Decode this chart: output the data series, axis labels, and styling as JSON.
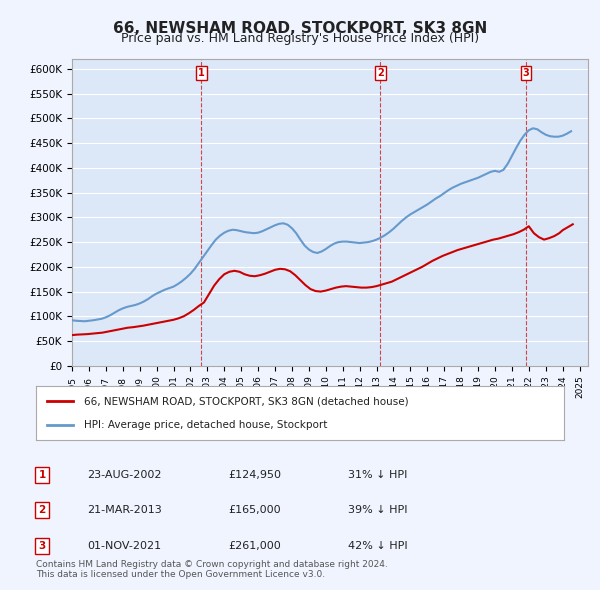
{
  "title": "66, NEWSHAM ROAD, STOCKPORT, SK3 8GN",
  "subtitle": "Price paid vs. HM Land Registry's House Price Index (HPI)",
  "title_fontsize": 11,
  "subtitle_fontsize": 9,
  "ylim": [
    0,
    620000
  ],
  "yticks": [
    0,
    50000,
    100000,
    150000,
    200000,
    250000,
    300000,
    350000,
    400000,
    450000,
    500000,
    550000,
    600000
  ],
  "ytick_labels": [
    "£0",
    "£50K",
    "£100K",
    "£150K",
    "£200K",
    "£250K",
    "£300K",
    "£350K",
    "£400K",
    "£450K",
    "£500K",
    "£550K",
    "£600K"
  ],
  "xlim_start": 1995.0,
  "xlim_end": 2025.5,
  "background_color": "#f0f4ff",
  "plot_bg_color": "#dce8f8",
  "grid_color": "#ffffff",
  "red_line_color": "#cc0000",
  "blue_line_color": "#6699cc",
  "sale_marker_color": "#cc0000",
  "sale_vline_color": "#cc0000",
  "sales": [
    {
      "date_num": 2002.64,
      "price": 124950,
      "label": "1"
    },
    {
      "date_num": 2013.22,
      "price": 165000,
      "label": "2"
    },
    {
      "date_num": 2021.83,
      "price": 261000,
      "label": "3"
    }
  ],
  "legend_line1": "66, NEWSHAM ROAD, STOCKPORT, SK3 8GN (detached house)",
  "legend_line2": "HPI: Average price, detached house, Stockport",
  "table_rows": [
    {
      "num": "1",
      "date": "23-AUG-2002",
      "price": "£124,950",
      "hpi": "31% ↓ HPI"
    },
    {
      "num": "2",
      "date": "21-MAR-2013",
      "price": "£165,000",
      "hpi": "39% ↓ HPI"
    },
    {
      "num": "3",
      "date": "01-NOV-2021",
      "price": "£261,000",
      "hpi": "42% ↓ HPI"
    }
  ],
  "footnote": "Contains HM Land Registry data © Crown copyright and database right 2024.\nThis data is licensed under the Open Government Licence v3.0.",
  "hpi_data": {
    "years": [
      1995.0,
      1995.25,
      1995.5,
      1995.75,
      1996.0,
      1996.25,
      1996.5,
      1996.75,
      1997.0,
      1997.25,
      1997.5,
      1997.75,
      1998.0,
      1998.25,
      1998.5,
      1998.75,
      1999.0,
      1999.25,
      1999.5,
      1999.75,
      2000.0,
      2000.25,
      2000.5,
      2000.75,
      2001.0,
      2001.25,
      2001.5,
      2001.75,
      2002.0,
      2002.25,
      2002.5,
      2002.75,
      2003.0,
      2003.25,
      2003.5,
      2003.75,
      2004.0,
      2004.25,
      2004.5,
      2004.75,
      2005.0,
      2005.25,
      2005.5,
      2005.75,
      2006.0,
      2006.25,
      2006.5,
      2006.75,
      2007.0,
      2007.25,
      2007.5,
      2007.75,
      2008.0,
      2008.25,
      2008.5,
      2008.75,
      2009.0,
      2009.25,
      2009.5,
      2009.75,
      2010.0,
      2010.25,
      2010.5,
      2010.75,
      2011.0,
      2011.25,
      2011.5,
      2011.75,
      2012.0,
      2012.25,
      2012.5,
      2012.75,
      2013.0,
      2013.25,
      2013.5,
      2013.75,
      2014.0,
      2014.25,
      2014.5,
      2014.75,
      2015.0,
      2015.25,
      2015.5,
      2015.75,
      2016.0,
      2016.25,
      2016.5,
      2016.75,
      2017.0,
      2017.25,
      2017.5,
      2017.75,
      2018.0,
      2018.25,
      2018.5,
      2018.75,
      2019.0,
      2019.25,
      2019.5,
      2019.75,
      2020.0,
      2020.25,
      2020.5,
      2020.75,
      2021.0,
      2021.25,
      2021.5,
      2021.75,
      2022.0,
      2022.25,
      2022.5,
      2022.75,
      2023.0,
      2023.25,
      2023.5,
      2023.75,
      2024.0,
      2024.25,
      2024.5
    ],
    "values": [
      92000,
      91000,
      90500,
      90000,
      91000,
      92000,
      93500,
      95000,
      98000,
      102000,
      107000,
      112000,
      116000,
      119000,
      121000,
      123000,
      126000,
      130000,
      135000,
      141000,
      146000,
      150000,
      154000,
      157000,
      160000,
      165000,
      171000,
      178000,
      186000,
      196000,
      208000,
      220000,
      232000,
      244000,
      255000,
      263000,
      269000,
      273000,
      275000,
      274000,
      272000,
      270000,
      269000,
      268000,
      269000,
      272000,
      276000,
      280000,
      284000,
      287000,
      288000,
      285000,
      278000,
      268000,
      255000,
      243000,
      235000,
      230000,
      228000,
      231000,
      236000,
      242000,
      247000,
      250000,
      251000,
      251000,
      250000,
      249000,
      248000,
      249000,
      250000,
      252000,
      255000,
      259000,
      264000,
      270000,
      277000,
      285000,
      293000,
      300000,
      306000,
      311000,
      316000,
      321000,
      326000,
      332000,
      338000,
      343000,
      349000,
      355000,
      360000,
      364000,
      368000,
      371000,
      374000,
      377000,
      380000,
      384000,
      388000,
      392000,
      394000,
      392000,
      396000,
      408000,
      424000,
      440000,
      455000,
      467000,
      476000,
      480000,
      478000,
      472000,
      467000,
      464000,
      463000,
      463000,
      465000,
      469000,
      474000
    ]
  },
  "price_data": {
    "years": [
      1995.0,
      1995.3,
      1995.6,
      1995.9,
      1996.2,
      1996.5,
      1996.8,
      1997.1,
      1997.4,
      1997.7,
      1998.0,
      1998.3,
      1998.6,
      1998.9,
      1999.2,
      1999.5,
      1999.8,
      2000.1,
      2000.4,
      2000.7,
      2001.0,
      2001.3,
      2001.6,
      2001.9,
      2002.2,
      2002.5,
      2002.8,
      2003.1,
      2003.4,
      2003.7,
      2004.0,
      2004.3,
      2004.6,
      2004.9,
      2005.2,
      2005.5,
      2005.8,
      2006.1,
      2006.4,
      2006.7,
      2007.0,
      2007.3,
      2007.6,
      2007.9,
      2008.2,
      2008.5,
      2008.8,
      2009.1,
      2009.4,
      2009.7,
      2010.0,
      2010.3,
      2010.6,
      2010.9,
      2011.2,
      2011.5,
      2011.8,
      2012.1,
      2012.4,
      2012.7,
      2013.0,
      2013.3,
      2013.6,
      2013.9,
      2014.2,
      2014.5,
      2014.8,
      2015.1,
      2015.4,
      2015.7,
      2016.0,
      2016.3,
      2016.6,
      2016.9,
      2017.2,
      2017.5,
      2017.8,
      2018.1,
      2018.4,
      2018.7,
      2019.0,
      2019.3,
      2019.6,
      2019.9,
      2020.2,
      2020.5,
      2020.8,
      2021.1,
      2021.4,
      2021.7,
      2022.0,
      2022.3,
      2022.6,
      2022.9,
      2023.2,
      2023.5,
      2023.8,
      2024.0,
      2024.3,
      2024.6
    ],
    "values": [
      62000,
      63000,
      63500,
      64000,
      65000,
      66000,
      67000,
      69000,
      71000,
      73000,
      75000,
      77000,
      78000,
      79500,
      81000,
      83000,
      85000,
      87000,
      89000,
      91000,
      93000,
      96000,
      100000,
      106000,
      113000,
      121000,
      128000,
      145000,
      162000,
      175000,
      185000,
      190000,
      192000,
      190000,
      185000,
      182000,
      181000,
      183000,
      186000,
      190000,
      194000,
      196000,
      195000,
      191000,
      183000,
      173000,
      163000,
      155000,
      151000,
      150000,
      152000,
      155000,
      158000,
      160000,
      161000,
      160000,
      159000,
      158000,
      158000,
      159000,
      161000,
      164000,
      167000,
      170000,
      175000,
      180000,
      185000,
      190000,
      195000,
      200000,
      206000,
      212000,
      217000,
      222000,
      226000,
      230000,
      234000,
      237000,
      240000,
      243000,
      246000,
      249000,
      252000,
      255000,
      257000,
      260000,
      263000,
      266000,
      270000,
      275000,
      282000,
      268000,
      260000,
      255000,
      258000,
      262000,
      268000,
      274000,
      280000,
      286000
    ]
  }
}
